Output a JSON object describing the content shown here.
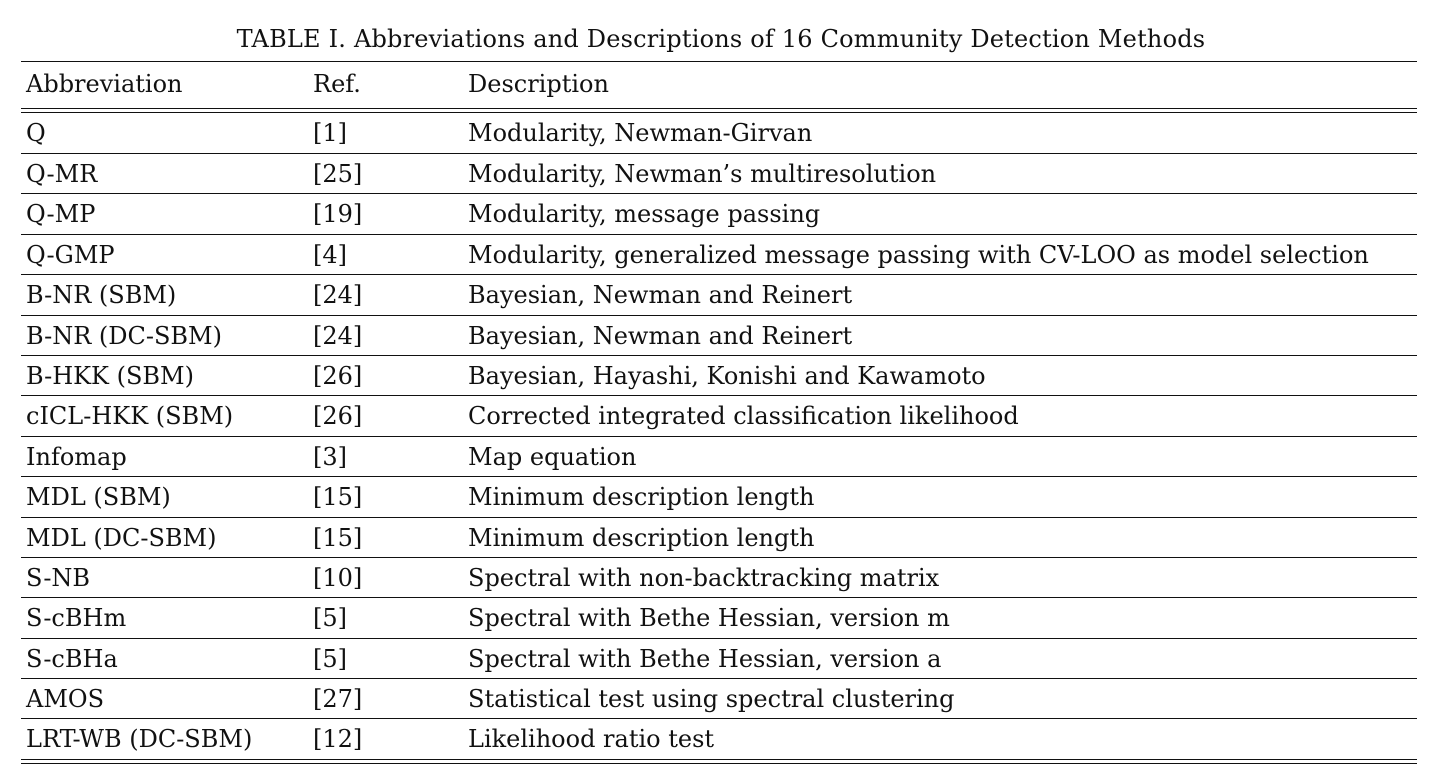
{
  "caption": "TABLE I. Abbreviations and Descriptions of 16 Community Detection Methods",
  "columns": {
    "abbreviation": "Abbreviation",
    "ref": "Ref.",
    "description": "Description"
  },
  "rows": [
    {
      "abbr": "Q",
      "ref": "[1]",
      "desc": "Modularity, Newman-Girvan"
    },
    {
      "abbr": "Q-MR",
      "ref": "[25]",
      "desc": "Modularity, Newman’s multiresolution"
    },
    {
      "abbr": "Q-MP",
      "ref": "[19]",
      "desc": "Modularity, message passing"
    },
    {
      "abbr": "Q-GMP",
      "ref": "[4]",
      "desc": "Modularity, generalized message passing with CV-LOO as model selection"
    },
    {
      "abbr": "B-NR (SBM)",
      "ref": "[24]",
      "desc": "Bayesian, Newman and Reinert"
    },
    {
      "abbr": "B-NR (DC-SBM)",
      "ref": "[24]",
      "desc": "Bayesian, Newman and Reinert"
    },
    {
      "abbr": "B-HKK (SBM)",
      "ref": "[26]",
      "desc": "Bayesian, Hayashi, Konishi and Kawamoto"
    },
    {
      "abbr": "cICL-HKK (SBM)",
      "ref": "[26]",
      "desc": "Corrected integrated classification likelihood"
    },
    {
      "abbr": "Infomap",
      "ref": "[3]",
      "desc": "Map equation"
    },
    {
      "abbr": "MDL (SBM)",
      "ref": "[15]",
      "desc": "Minimum description length"
    },
    {
      "abbr": "MDL (DC-SBM)",
      "ref": "[15]",
      "desc": "Minimum description length"
    },
    {
      "abbr": "S-NB",
      "ref": "[10]",
      "desc": "Spectral with non-backtracking matrix"
    },
    {
      "abbr": "S-cBHm",
      "ref": "[5]",
      "desc": "Spectral with Bethe Hessian, version m"
    },
    {
      "abbr": "S-cBHa",
      "ref": "[5]",
      "desc": "Spectral with Bethe Hessian, version a"
    },
    {
      "abbr": "AMOS",
      "ref": "[27]",
      "desc": "Statistical test using spectral clustering"
    },
    {
      "abbr": "LRT-WB (DC-SBM)",
      "ref": "[12]",
      "desc": "Likelihood ratio test"
    }
  ]
}
